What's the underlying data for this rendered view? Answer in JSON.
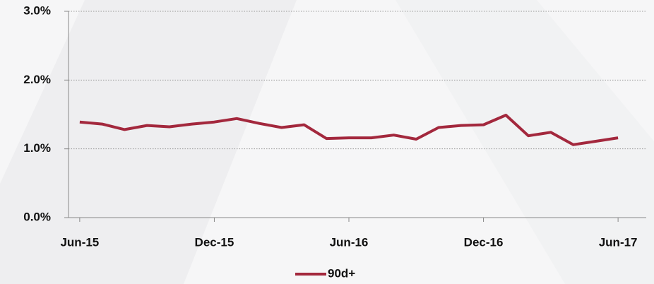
{
  "chart_data": {
    "type": "line",
    "categories": [
      "Jun-15",
      null,
      null,
      null,
      null,
      null,
      "Dec-15",
      null,
      null,
      null,
      null,
      null,
      "Jun-16",
      null,
      null,
      null,
      null,
      null,
      "Dec-16",
      null,
      null,
      null,
      null,
      null,
      "Jun-17"
    ],
    "series": [
      {
        "name": "90d+",
        "color": "#a3283d",
        "values": [
          1.39,
          1.36,
          1.28,
          1.34,
          1.32,
          1.36,
          1.39,
          1.44,
          1.37,
          1.31,
          1.35,
          1.15,
          1.16,
          1.16,
          1.2,
          1.14,
          1.31,
          1.34,
          1.35,
          1.49,
          1.19,
          1.24,
          1.06,
          1.11,
          1.16
        ]
      }
    ],
    "ylim": [
      0,
      3
    ],
    "yticks": [
      {
        "value": 0,
        "label": "0.0%"
      },
      {
        "value": 1,
        "label": "1.0%"
      },
      {
        "value": 2,
        "label": "2.0%"
      },
      {
        "value": 3,
        "label": "3.0%"
      }
    ],
    "grid": true,
    "legend": "bottom"
  }
}
